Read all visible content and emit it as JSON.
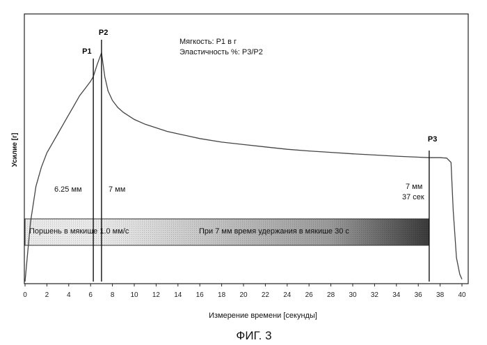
{
  "chart_data": {
    "type": "line",
    "xlabel": "Измерение времени [секунды]",
    "ylabel": "Усилие [г]",
    "x_ticks": [
      0,
      2,
      4,
      6,
      8,
      10,
      12,
      14,
      16,
      18,
      20,
      22,
      24,
      26,
      28,
      30,
      32,
      34,
      36,
      38,
      40
    ],
    "xlim": [
      0,
      40
    ],
    "ylim": [
      0,
      100
    ],
    "grid": false,
    "series": [
      {
        "x": [
          0,
          0.2,
          0.5,
          1,
          1.5,
          2,
          2.5,
          3,
          3.5,
          4,
          4.5,
          5,
          5.5,
          6,
          6.25,
          6.6,
          7,
          7.3,
          7.6,
          8,
          8.5,
          9,
          10,
          11,
          12,
          13,
          14,
          15,
          16,
          18,
          20,
          22,
          24,
          26,
          28,
          30,
          32,
          34,
          36,
          37,
          38,
          38.6,
          39,
          39.2,
          39.5,
          39.8,
          40
        ],
        "y": [
          0,
          10,
          25,
          40,
          48,
          54,
          58,
          62,
          66,
          70,
          74,
          78,
          81,
          84,
          86,
          91,
          96,
          86,
          80,
          76,
          73,
          71,
          68,
          66,
          64.5,
          63,
          62,
          61,
          60,
          58.5,
          57.5,
          56.5,
          55.5,
          54.8,
          54.2,
          53.6,
          53.1,
          52.6,
          52.2,
          52,
          52,
          51.8,
          50,
          30,
          10,
          3,
          1
        ]
      }
    ],
    "markers": [
      {
        "label": "P1",
        "x": 6.25
      },
      {
        "label": "P2",
        "x": 7
      },
      {
        "label": "P3",
        "x": 37
      }
    ],
    "annotations": {
      "softness": "Мягкость: P1 в г",
      "elasticity": "Эластичность %: P3/P2",
      "a1": "6.25 мм",
      "a2": "7 мм",
      "a3_line1": "7 мм",
      "a3_line2": "37 сек"
    },
    "bar": {
      "left_text": "Поршень в мякише 1.0 мм/с",
      "right_text": "При 7 мм время удержания в мякише 30 с",
      "x_start": 0,
      "x_gradient_start": 7,
      "x_end": 37
    },
    "figure_label": "ФИГ. 3"
  }
}
